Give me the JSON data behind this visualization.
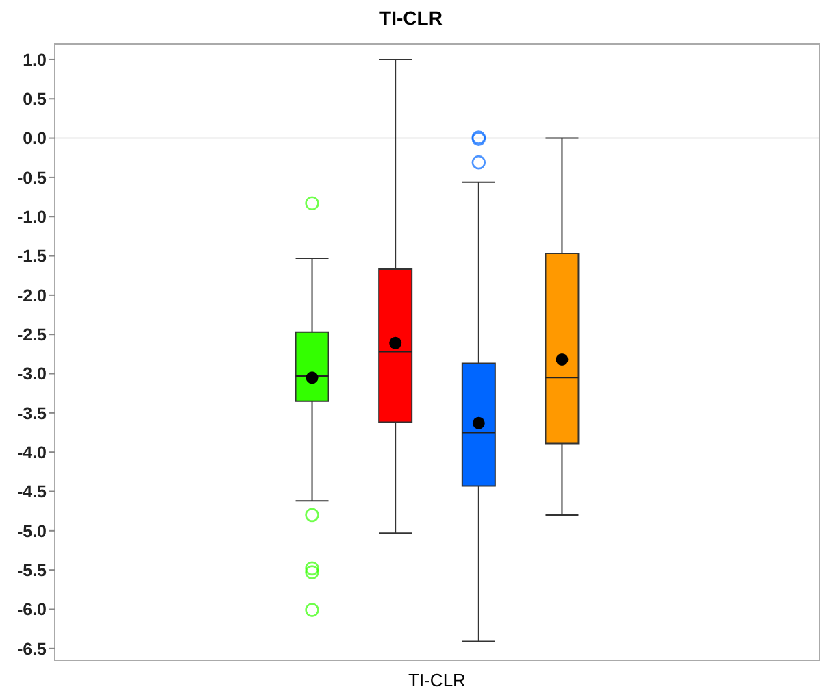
{
  "chart_data": {
    "type": "box",
    "title": "TI-CLR",
    "categories": [
      "TI-CLR"
    ],
    "ylim": [
      -6.65,
      1.2
    ],
    "yticks": [
      {
        "value": 1,
        "label": "1.0"
      },
      0.5,
      {
        "value": 0,
        "label": "0.0"
      },
      -0.5,
      {
        "value": -1,
        "label": "-1.0"
      },
      -1.5,
      {
        "value": -2,
        "label": "-2.0"
      },
      -2.5,
      {
        "value": -3,
        "label": "-3.0"
      },
      -3.5,
      {
        "value": -4,
        "label": "-4.0"
      },
      -4.5,
      {
        "value": -5,
        "label": "-5.0"
      },
      -5.5,
      {
        "value": -6,
        "label": "-6.0"
      },
      -6.5
    ],
    "grid": false,
    "ref_lines": [
      {
        "axis": "y",
        "value": 0,
        "color": "#e6e6e6"
      }
    ],
    "series": [
      {
        "color": "#33ff00",
        "boxes": [
          {
            "low": -4.62,
            "q1": -3.35,
            "median": -3.03,
            "q3": -2.47,
            "high": -1.53,
            "mean": -3.05,
            "outliers": [
              -0.83,
              -4.8,
              -5.48,
              -5.53,
              -6.01
            ]
          }
        ]
      },
      {
        "color": "#ff0000",
        "boxes": [
          {
            "low": -5.03,
            "q1": -3.62,
            "median": -2.72,
            "q3": -1.67,
            "high": 1.0,
            "mean": -2.61
          }
        ]
      },
      {
        "color": "#0066ff",
        "boxes": [
          {
            "low": -6.41,
            "q1": -4.43,
            "median": -3.75,
            "q3": -2.87,
            "high": -0.56,
            "mean": -3.63,
            "outliers": [
              0.01,
              -0.01,
              -0.31
            ]
          }
        ]
      },
      {
        "color": "#ff9900",
        "boxes": [
          {
            "low": -4.8,
            "q1": -3.89,
            "median": -3.05,
            "q3": -1.47,
            "high": 0.0,
            "mean": -2.82
          }
        ]
      }
    ]
  }
}
